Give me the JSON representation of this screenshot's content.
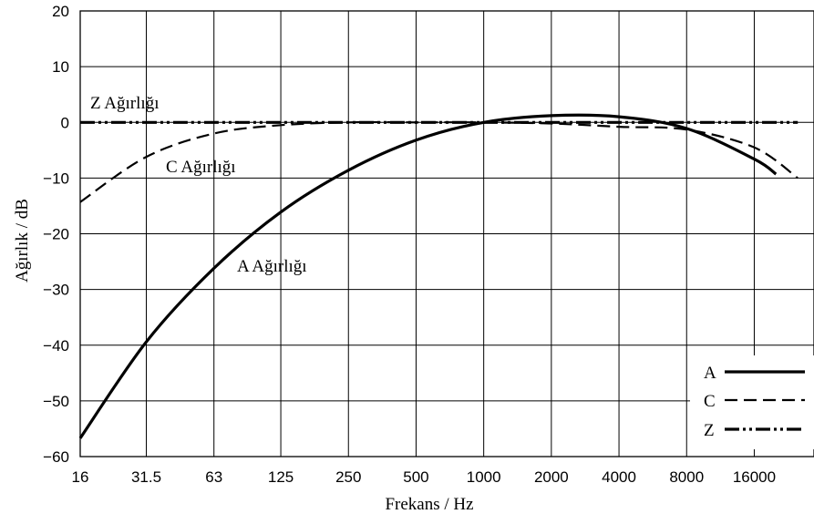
{
  "chart_data": {
    "type": "line",
    "title": "",
    "xlabel": "Frekans / Hz",
    "ylabel": "Ağırlık / dB",
    "x_scale": "log2",
    "x_ticks": [
      16,
      31.5,
      63,
      125,
      250,
      500,
      1000,
      2000,
      4000,
      8000,
      16000
    ],
    "x_tick_labels": [
      "16",
      "31.5",
      "63",
      "125",
      "250",
      "500",
      "1000",
      "2000",
      "4000",
      "8000",
      "16000"
    ],
    "xlim": [
      16,
      25000
    ],
    "ylim": [
      -60,
      20
    ],
    "y_ticks": [
      -60,
      -50,
      -40,
      -30,
      -20,
      -10,
      0,
      10,
      20
    ],
    "y_tick_labels": [
      "−60",
      "−50",
      "−40",
      "−30",
      "−20",
      "−10",
      "0",
      "10",
      "20"
    ],
    "grid": true,
    "legend_position": "bottom-right",
    "series": [
      {
        "name": "A",
        "style": "solid",
        "x": [
          16,
          31.5,
          63,
          125,
          250,
          500,
          1000,
          2000,
          4000,
          8000,
          16000,
          20000
        ],
        "y": [
          -56.7,
          -39.4,
          -26.2,
          -16.1,
          -8.6,
          -3.2,
          0.0,
          1.2,
          1.0,
          -1.1,
          -6.6,
          -9.3
        ]
      },
      {
        "name": "C",
        "style": "dashed",
        "x": [
          16,
          31.5,
          63,
          125,
          250,
          500,
          1000,
          2000,
          4000,
          8000,
          16000,
          25000
        ],
        "y": [
          -14.3,
          -6.2,
          -2.0,
          -0.5,
          0.0,
          0.0,
          0.0,
          -0.2,
          -0.8,
          -1.3,
          -4.5,
          -10.0
        ]
      },
      {
        "name": "Z",
        "style": "dashdot",
        "x": [
          16,
          25000
        ],
        "y": [
          0,
          0
        ]
      }
    ],
    "annotations": [
      {
        "text": "Z Ağırlığı",
        "series": "Z"
      },
      {
        "text": "C Ağırlığı",
        "series": "C"
      },
      {
        "text": "A Ağırlığı",
        "series": "A"
      }
    ],
    "colors": {
      "lines": "#000000",
      "grid": "#000000",
      "background": "#ffffff"
    }
  }
}
